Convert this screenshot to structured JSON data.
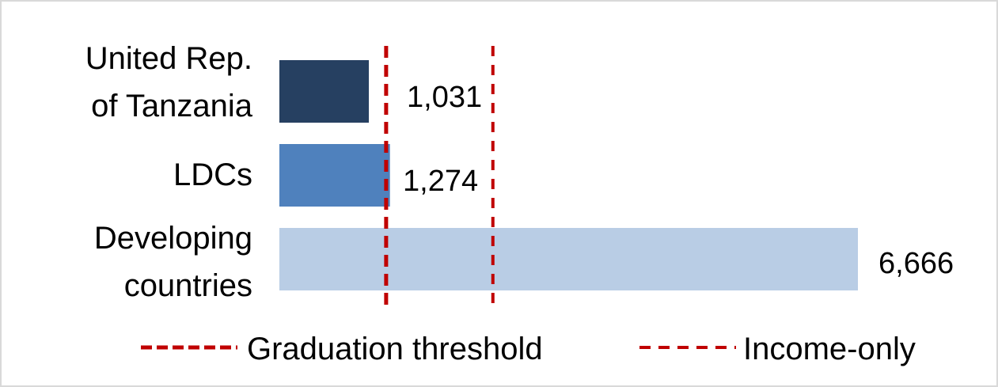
{
  "chart_data": {
    "type": "bar",
    "orientation": "horizontal",
    "categories": [
      [
        "United Rep.",
        "of Tanzania"
      ],
      [
        "LDCs"
      ],
      [
        "Developing",
        "countries"
      ]
    ],
    "values": [
      1031,
      1274,
      6666
    ],
    "value_labels": [
      "1,031",
      "1,274",
      "6,666"
    ],
    "bar_colors": [
      "#264061",
      "#4f81bd",
      "#b9cde5"
    ],
    "reference_lines": [
      {
        "name": "Graduation threshold",
        "value": 1230,
        "color": "#c00000",
        "style": "dashed"
      },
      {
        "name": "Income-only",
        "value": 2460,
        "color": "#c00000",
        "style": "dashed"
      }
    ],
    "xlim": [
      0,
      6800
    ],
    "legend_position": "bottom",
    "grid": false,
    "title": "",
    "xlabel": "",
    "ylabel": ""
  }
}
